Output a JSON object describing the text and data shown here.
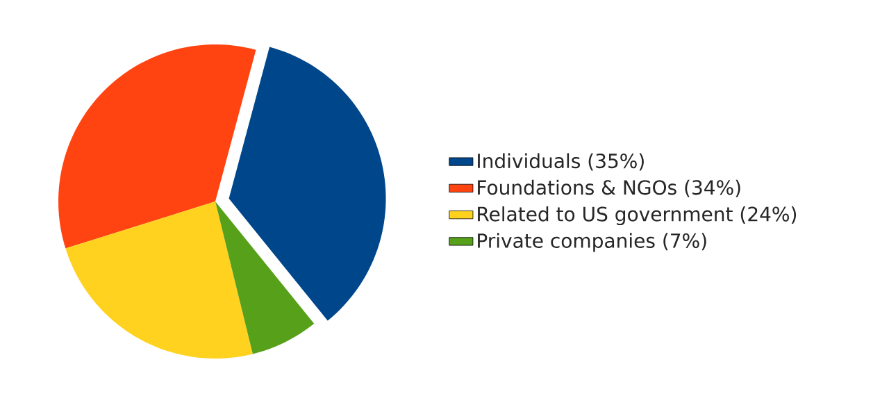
{
  "chart_data": {
    "type": "pie",
    "categories": [
      "Individuals (35%)",
      "Foundations & NGOs (34%)",
      "Related to US government (24%)",
      "Private companies (7%)"
    ],
    "values": [
      35,
      34,
      24,
      7
    ],
    "colors": [
      "#00468b",
      "#ff4411",
      "#ffd21f",
      "#56a01a"
    ],
    "legend": "right"
  }
}
